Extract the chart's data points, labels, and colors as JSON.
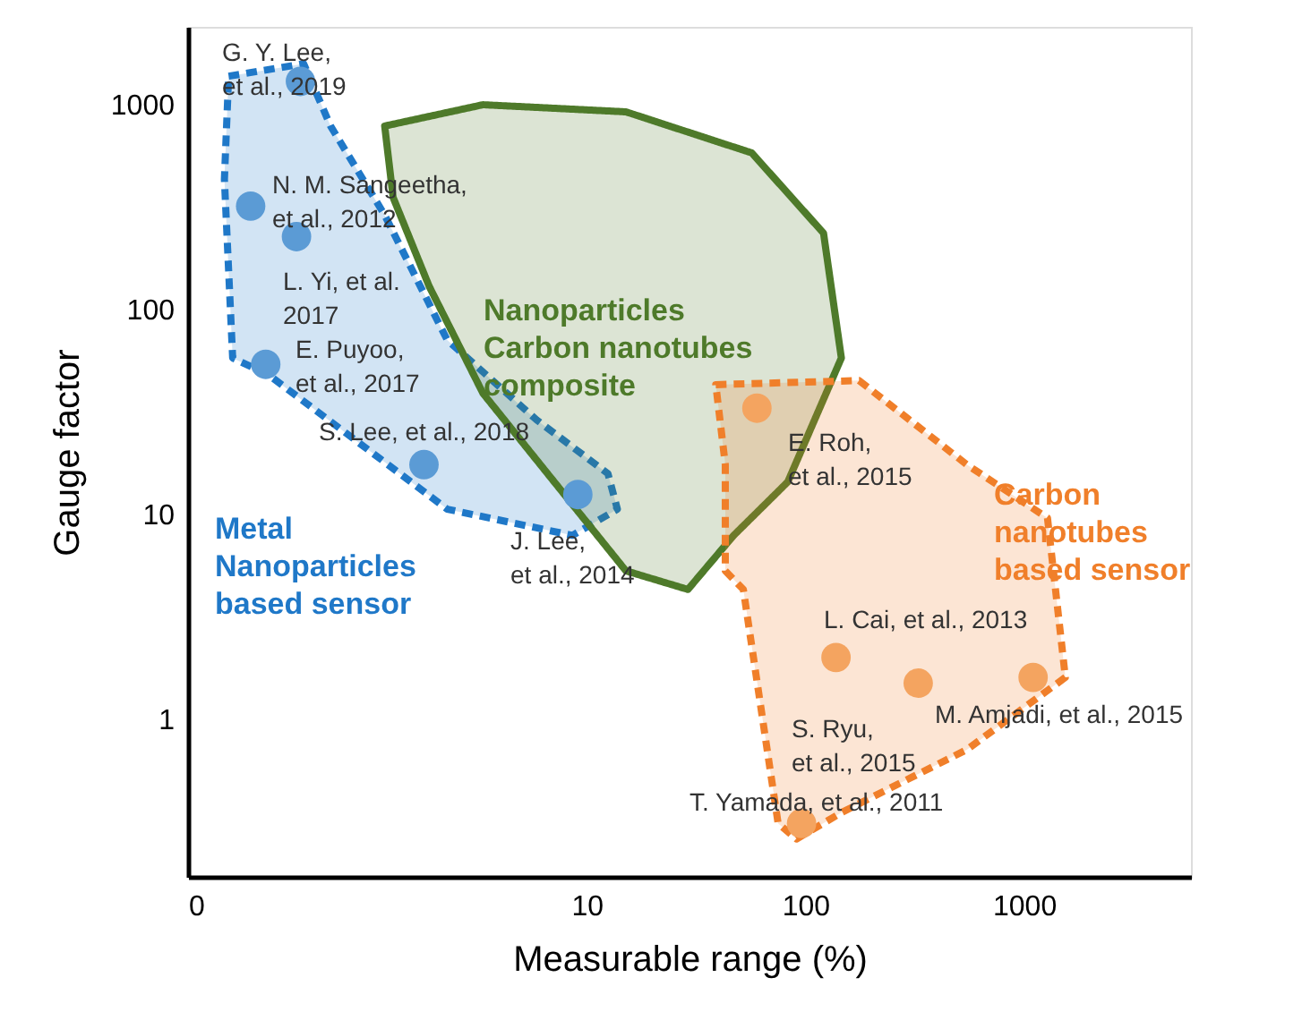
{
  "chart_data": {
    "type": "scatter",
    "xlabel": "Measurable range (%)",
    "ylabel": "Gauge factor",
    "log": "xy",
    "xlim": [
      0.15,
      5800
    ],
    "ylim": [
      0.17,
      2400
    ],
    "xticks": [
      {
        "value": 0.15,
        "label": "0"
      },
      {
        "value": 10,
        "label": "10"
      },
      {
        "value": 100,
        "label": "100"
      },
      {
        "value": 1000,
        "label": "1000"
      }
    ],
    "yticks": [
      {
        "value": 1,
        "label": "1"
      },
      {
        "value": 10,
        "label": "10"
      },
      {
        "value": 100,
        "label": "100"
      },
      {
        "value": 1000,
        "label": "1000"
      }
    ],
    "series": [
      {
        "type": "area",
        "line_style": "dashed",
        "color": "#1f78c8",
        "x": [
          0.23,
          0.507,
          0.673,
          1.19,
          2.3,
          5.9,
          12.5,
          13.8,
          8.6,
          2.3,
          0.35,
          0.24,
          0.22
        ],
        "values": [
          1378,
          1585,
          787,
          289,
          71,
          28.9,
          15.8,
          10.6,
          7.9,
          10.6,
          48,
          58,
          432
        ]
      },
      {
        "type": "area",
        "line_style": "solid",
        "color": "#4e7a2a",
        "x": [
          1.19,
          3.35,
          15.1,
          56.8,
          121,
          146,
          83,
          47,
          29,
          15.1,
          7.1,
          3.35,
          1.9,
          1.3
        ],
        "values": [
          787,
          1000,
          923,
          582,
          236,
          58,
          14.4,
          7.9,
          4.3,
          5.3,
          14.4,
          39,
          130,
          353
        ]
      },
      {
        "type": "area",
        "line_style": "dashed",
        "color": "#f07f2a",
        "x": [
          38.9,
          176,
          547,
          1280,
          1545,
          547,
          146,
          91,
          75,
          52,
          43,
          43
        ],
        "values": [
          43,
          45,
          17.5,
          9.6,
          1.6,
          0.71,
          0.35,
          0.26,
          0.31,
          4.3,
          5.3,
          17.5
        ]
      },
      {
        "marker": "circle",
        "color": "#5b9bd5",
        "x": [
          0.49,
          0.29,
          0.47,
          0.34,
          1.8,
          9.1
        ],
        "values": [
          1300,
          320,
          227,
          54,
          17.5,
          12.5
        ]
      },
      {
        "marker": "circle",
        "color": "#f4a460",
        "x": [
          60,
          138,
          328,
          1100,
          96
        ],
        "values": [
          33,
          2.0,
          1.5,
          1.6,
          0.31
        ]
      }
    ],
    "annotations": [
      "Metal\nNanoparticles\nbased sensor",
      "Nanoparticles\nCarbon nanotubes\ncomposite",
      "Carbon\nnanotubes\nbased sensor",
      "G. Y. Lee,\net al., 2019",
      "N. M. Sangeetha,\net al., 2012",
      "L. Yi, et al.\n2017",
      "E. Puyoo,\net al., 2017",
      "S. Lee, et al., 2018",
      "J. Lee,\net al., 2014",
      "E. Roh,\net al., 2015",
      "L. Cai, et al., 2013",
      "S. Ryu,\net al., 2015",
      "M. Amjadi, et al., 2015",
      "T. Yamada, et al., 2011"
    ]
  }
}
